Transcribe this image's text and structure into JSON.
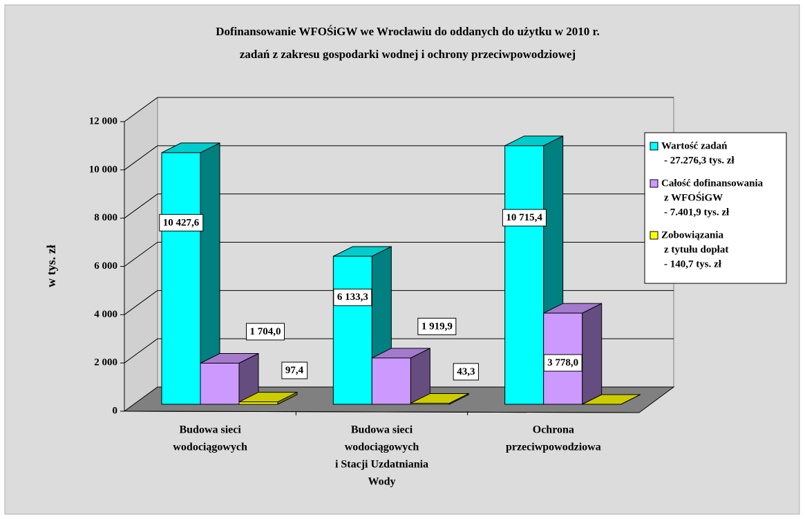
{
  "chart_data": {
    "type": "bar3d",
    "title": [
      "Dofinansowanie WFOŚiGW we Wrocławiu do oddanych do użytku w 2010 r.",
      "zadań z zakresu gospodarki wodnej i ochrony przeciwpowodziowej"
    ],
    "y_label": "w tys. zł",
    "categories": [
      [
        "Budowa sieci",
        "wodociągowych"
      ],
      [
        "Budowa sieci",
        "wodociągowych",
        "i  Stacji Uzdatniania",
        "Wody"
      ],
      [
        "Ochrona",
        "przeciwpowodziowa"
      ]
    ],
    "series": [
      {
        "name": [
          "Wartość zadań",
          "- 27.276,3 tys. zł"
        ],
        "color": "#00ffff",
        "values": [
          10427.6,
          6133.3,
          10715.4
        ],
        "value_labels": [
          "10 427,6",
          "6 133,3",
          "10 715,4"
        ]
      },
      {
        "name": [
          "Całość dofinansowania",
          "z WFOŚiGW",
          "- 7.401,9 tys. zł"
        ],
        "color": "#cc99ff",
        "values": [
          1704.0,
          1919.9,
          3778.0
        ],
        "value_labels": [
          "1 704,0",
          "1 919,9",
          "3 778,0"
        ]
      },
      {
        "name": [
          "Zobowiązania",
          "z tytułu dopłat",
          "- 140,7 tys. zł"
        ],
        "color": "#ffff00",
        "values": [
          97.4,
          43.3,
          0
        ],
        "value_labels": [
          "97,4",
          "43,3",
          null
        ]
      }
    ],
    "ylim": [
      0,
      12000
    ],
    "yticks": [
      0,
      {
        "value": 2000,
        "label": "2 000"
      },
      {
        "value": 4000,
        "label": "4 000"
      },
      {
        "value": 6000,
        "label": "6 000"
      },
      {
        "value": 8000,
        "label": "8 000"
      },
      {
        "value": 10000,
        "label": "10 000"
      },
      {
        "value": 12000,
        "label": "12 000"
      }
    ],
    "grid": true,
    "legend": "right"
  }
}
